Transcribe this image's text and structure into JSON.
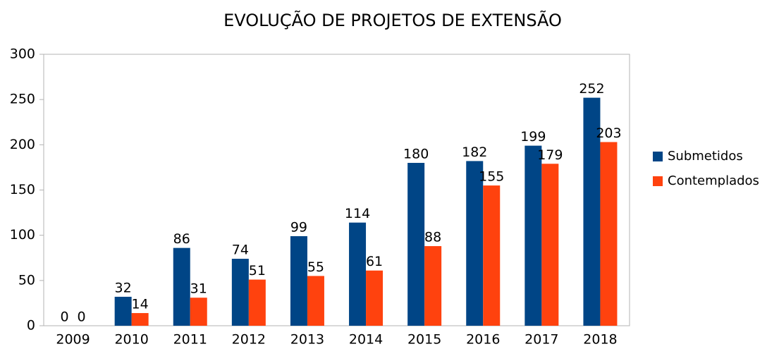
{
  "chart_data": {
    "type": "bar",
    "title": "EVOLUÇÃO DE PROJETOS DE EXTENSÃO",
    "categories": [
      "2009",
      "2010",
      "2011",
      "2012",
      "2013",
      "2014",
      "2015",
      "2016",
      "2017",
      "2018"
    ],
    "series": [
      {
        "name": "Submetidos",
        "color": "#004586",
        "values": [
          0,
          32,
          86,
          74,
          99,
          114,
          180,
          182,
          199,
          252
        ]
      },
      {
        "name": "Contemplados",
        "color": "#ff420e",
        "values": [
          0,
          14,
          31,
          51,
          55,
          61,
          88,
          155,
          179,
          203
        ]
      }
    ],
    "ylim": [
      0,
      300
    ],
    "yticks": [
      0,
      50,
      100,
      150,
      200,
      250,
      300
    ],
    "grid": false,
    "legend": "right"
  }
}
